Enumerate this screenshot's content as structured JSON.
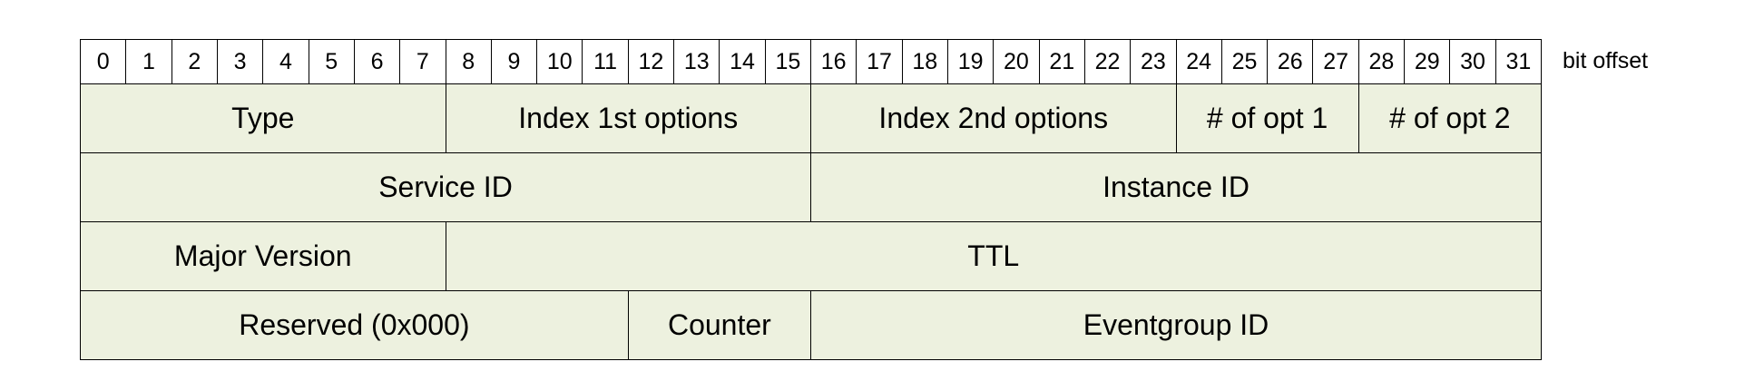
{
  "bit_header": {
    "bits": [
      "0",
      "1",
      "2",
      "3",
      "4",
      "5",
      "6",
      "7",
      "8",
      "9",
      "10",
      "11",
      "12",
      "13",
      "14",
      "15",
      "16",
      "17",
      "18",
      "19",
      "20",
      "21",
      "22",
      "23",
      "24",
      "25",
      "26",
      "27",
      "28",
      "29",
      "30",
      "31"
    ],
    "offset_label": "bit offset"
  },
  "fields": [
    {
      "row": 0,
      "start": 0,
      "end": 8,
      "label": "Type"
    },
    {
      "row": 0,
      "start": 8,
      "end": 16,
      "label": "Index 1st options"
    },
    {
      "row": 0,
      "start": 16,
      "end": 24,
      "label": "Index 2nd options"
    },
    {
      "row": 0,
      "start": 24,
      "end": 28,
      "label": "# of opt 1"
    },
    {
      "row": 0,
      "start": 28,
      "end": 32,
      "label": "# of opt 2"
    },
    {
      "row": 1,
      "start": 0,
      "end": 16,
      "label": "Service ID"
    },
    {
      "row": 1,
      "start": 16,
      "end": 32,
      "label": "Instance ID"
    },
    {
      "row": 2,
      "start": 0,
      "end": 8,
      "label": "Major Version"
    },
    {
      "row": 2,
      "start": 8,
      "end": 32,
      "label": "TTL"
    },
    {
      "row": 3,
      "start": 0,
      "end": 12,
      "label": "Reserved (0x000)"
    },
    {
      "row": 3,
      "start": 12,
      "end": 16,
      "label": "Counter"
    },
    {
      "row": 3,
      "start": 16,
      "end": 32,
      "label": "Eventgroup ID"
    }
  ],
  "colors": {
    "field_fill": "#edf1df",
    "bit_fill": "#ffffff",
    "border": "#000000"
  }
}
